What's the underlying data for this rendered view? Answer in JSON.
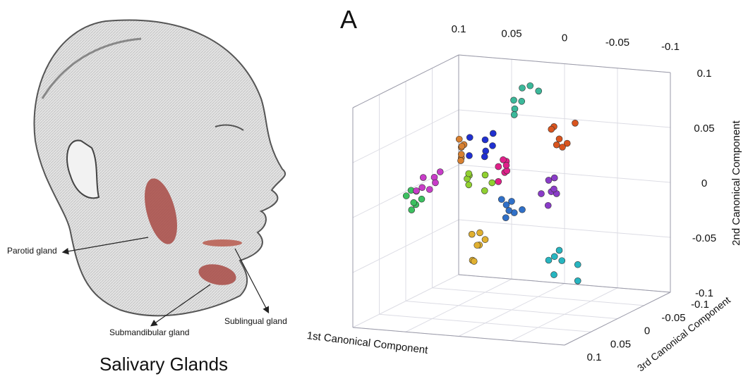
{
  "illustration": {
    "title": "Salivary Glands",
    "labels": [
      "Parotid gland",
      "Submandibular gland",
      "Sublingual gland"
    ]
  },
  "chart_data": {
    "type": "scatter3d",
    "panel_label": "A",
    "xlabel": "1st Canonical Component",
    "ylabel": "2nd Canonical Component",
    "zlabel": "3rd Canonical Component",
    "xlim": [
      -0.1,
      0.1
    ],
    "ylim": [
      -0.1,
      0.1
    ],
    "zlim": [
      -0.1,
      0.1
    ],
    "xticks": [
      -0.1,
      -0.05,
      0,
      0.05,
      0.1
    ],
    "yticks": [
      -0.1,
      -0.05,
      0,
      0.05,
      0.1
    ],
    "zticks": [
      -0.1,
      -0.05,
      0,
      0.05,
      0.1
    ],
    "grid": true,
    "series": [
      {
        "color": "#3cb89a",
        "x": [
          -0.005,
          -0.012,
          -0.018,
          -0.008,
          -0.002,
          -0.015,
          -0.01
        ],
        "y": [
          0.1,
          0.092,
          0.097,
          0.086,
          0.091,
          0.104,
          0.082
        ],
        "z": [
          -0.01,
          0.005,
          -0.015,
          0.01,
          0,
          -0.005,
          0.015
        ]
      },
      {
        "color": "#d9541e",
        "x": [
          -0.04,
          -0.05,
          -0.055,
          -0.045,
          -0.06,
          -0.035,
          -0.048
        ],
        "y": [
          0.07,
          0.062,
          0.072,
          0.055,
          0.06,
          0.066,
          0.052
        ],
        "z": [
          0,
          0.01,
          -0.01,
          0.005,
          0.015,
          -0.005,
          0
        ]
      },
      {
        "color": "#8a3cc8",
        "x": [
          -0.03,
          -0.04,
          -0.035,
          -0.045,
          -0.028,
          -0.038,
          -0.042
        ],
        "y": [
          0.018,
          0.012,
          0.005,
          0.016,
          0.008,
          0.022,
          0.002
        ],
        "z": [
          -0.01,
          0.005,
          -0.015,
          0.01,
          0,
          -0.005,
          0.015
        ]
      },
      {
        "color": "#27b5c0",
        "x": [
          -0.04,
          -0.05,
          -0.055,
          -0.045,
          -0.035,
          -0.06,
          -0.048
        ],
        "y": [
          -0.045,
          -0.05,
          -0.058,
          -0.062,
          -0.052,
          -0.07,
          -0.044
        ],
        "z": [
          -0.01,
          0.005,
          -0.015,
          0.01,
          0,
          -0.005,
          0.015
        ]
      },
      {
        "color": "#e0b030",
        "x": [
          0.035,
          0.028,
          0.04,
          0.032,
          0.025,
          0.038,
          0.03
        ],
        "y": [
          -0.035,
          -0.042,
          -0.048,
          -0.055,
          -0.038,
          -0.06,
          -0.03
        ],
        "z": [
          -0.01,
          0.005,
          -0.015,
          0.01,
          0,
          -0.005,
          0.015
        ]
      },
      {
        "color": "#3cc060",
        "x": [
          0.095,
          0.088,
          0.1,
          0.09,
          0.085,
          0.097,
          0.092
        ],
        "y": [
          -0.002,
          -0.01,
          -0.014,
          0.004,
          -0.006,
          -0.018,
          0
        ],
        "z": [
          -0.01,
          0.005,
          -0.015,
          0.01,
          0,
          -0.005,
          0.015
        ]
      },
      {
        "color": "#c83cc8",
        "x": [
          0.078,
          0.082,
          0.075,
          0.085,
          0.072,
          0.08,
          0.076
        ],
        "y": [
          0.012,
          0.006,
          0.016,
          0.004,
          0.01,
          0.002,
          0.018
        ],
        "z": [
          -0.01,
          0.005,
          -0.015,
          0.01,
          0,
          -0.005,
          0.015
        ]
      },
      {
        "color": "#2030d0",
        "x": [
          0.03,
          0.022,
          0.025,
          0.035,
          0.018,
          0.028,
          0.032
        ],
        "y": [
          0.05,
          0.044,
          0.055,
          0.04,
          0.048,
          0.036,
          0.058
        ],
        "z": [
          -0.01,
          0.005,
          -0.015,
          0.01,
          0,
          -0.005,
          0.015
        ]
      },
      {
        "color": "#e0208a",
        "x": [
          0.01,
          0.004,
          0.012,
          0,
          0.008,
          0.015,
          0.005
        ],
        "y": [
          0.032,
          0.026,
          0.022,
          0.034,
          0.036,
          0.028,
          0.02
        ],
        "z": [
          -0.01,
          0.005,
          -0.015,
          0.01,
          0,
          -0.005,
          0.015
        ]
      },
      {
        "color": "#90d030",
        "x": [
          0.03,
          0.038,
          0.026,
          0.035,
          0.042,
          0.028,
          0.033
        ],
        "y": [
          0.018,
          0.012,
          0.01,
          0.022,
          0.016,
          0.005,
          0.025
        ],
        "z": [
          -0.01,
          0.005,
          -0.015,
          0.01,
          0,
          -0.005,
          0.015
        ]
      },
      {
        "color": "#3070c8",
        "x": [
          0.005,
          -0.005,
          0.01,
          0,
          -0.01,
          0.008,
          0.002
        ],
        "y": [
          -0.004,
          -0.01,
          -0.014,
          -0.002,
          -0.008,
          -0.018,
          0.004
        ],
        "z": [
          -0.01,
          0.005,
          -0.015,
          0.01,
          0,
          -0.005,
          0.015
        ]
      },
      {
        "color": "#d88030",
        "x": [
          0.05,
          0.045,
          0.055,
          0.042,
          0.048,
          0.052,
          0.04
        ],
        "y": [
          0.044,
          0.036,
          0.04,
          0.048,
          0.032,
          0.05,
          0.042
        ],
        "z": [
          -0.01,
          0.005,
          -0.015,
          0.01,
          0,
          -0.005,
          0.015
        ]
      }
    ]
  }
}
